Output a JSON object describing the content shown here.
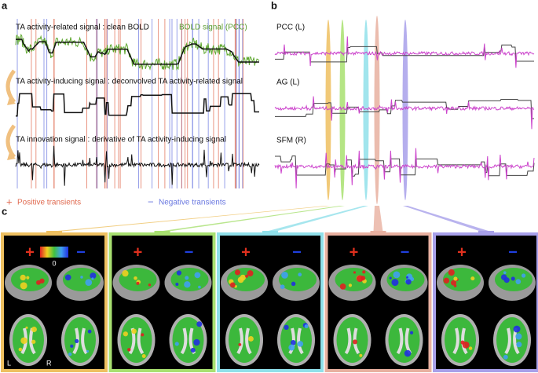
{
  "panel_a": {
    "label": "a",
    "line_1": "TA activity-related signal : clean BOLD",
    "line_1_legend": "BOLD signal (PCC)",
    "line_2": "TA activity-inducing signal : deconvolved TA activity-related signal",
    "line_3": "TA innovation signal : derivative of TA activity-inducing signal",
    "legend": [
      {
        "symbol": "+",
        "label": "Positive transients",
        "color": "#e06a50"
      },
      {
        "symbol": "−",
        "label": "Negative transients",
        "color": "#6a78e0"
      }
    ]
  },
  "panel_b": {
    "label": "b",
    "regions": [
      "PCC (L)",
      "AG (L)",
      "SFM (R)"
    ]
  },
  "panel_c": {
    "label": "c",
    "sign_positive": "+",
    "sign_negative": "−",
    "colorbar_label": "0",
    "left": "L",
    "right": "R",
    "maps": [
      {
        "color": "#eec060"
      },
      {
        "color": "#a8e070"
      },
      {
        "color": "#90e0ea"
      },
      {
        "color": "#e8b0a0"
      },
      {
        "color": "#a8a0ea"
      }
    ]
  }
}
